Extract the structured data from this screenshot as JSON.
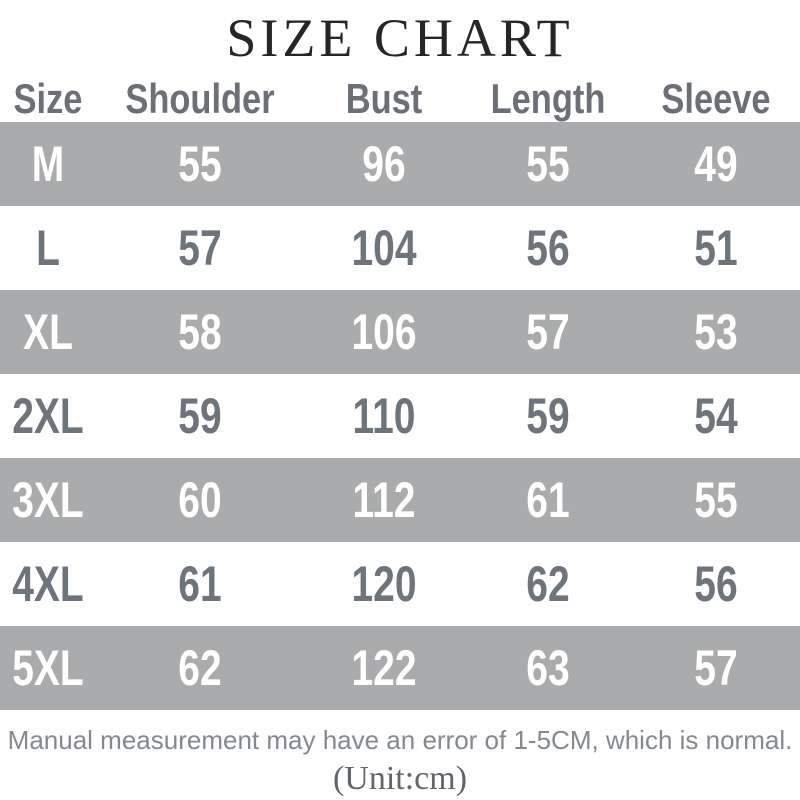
{
  "chart_data": {
    "type": "table",
    "title": "SIZE CHART",
    "columns": [
      "Size",
      "Shoulder",
      "Bust",
      "Length",
      "Sleeve"
    ],
    "rows": [
      [
        "M",
        "55",
        "96",
        "55",
        "49"
      ],
      [
        "L",
        "57",
        "104",
        "56",
        "51"
      ],
      [
        "XL",
        "58",
        "106",
        "57",
        "53"
      ],
      [
        "2XL",
        "59",
        "110",
        "59",
        "54"
      ],
      [
        "3XL",
        "60",
        "112",
        "61",
        "55"
      ],
      [
        "4XL",
        "61",
        "120",
        "62",
        "56"
      ],
      [
        "5XL",
        "62",
        "122",
        "63",
        "57"
      ]
    ],
    "unit": "cm",
    "layout": "alternating row stripes, first data row shaded"
  },
  "footer": {
    "note": "Manual measurement may have an error of 1-5CM, which is normal.",
    "unit_label": "(Unit:cm)"
  },
  "colors": {
    "stripe_gray": "#a9abad",
    "table_text_gray": "#6e747c",
    "header_text_gray": "#6b7077",
    "title_color": "#26262a",
    "note_color": "#84898f",
    "unit_color": "#60656b",
    "stripe_text": "#ffffff",
    "background": "#ffffff"
  }
}
